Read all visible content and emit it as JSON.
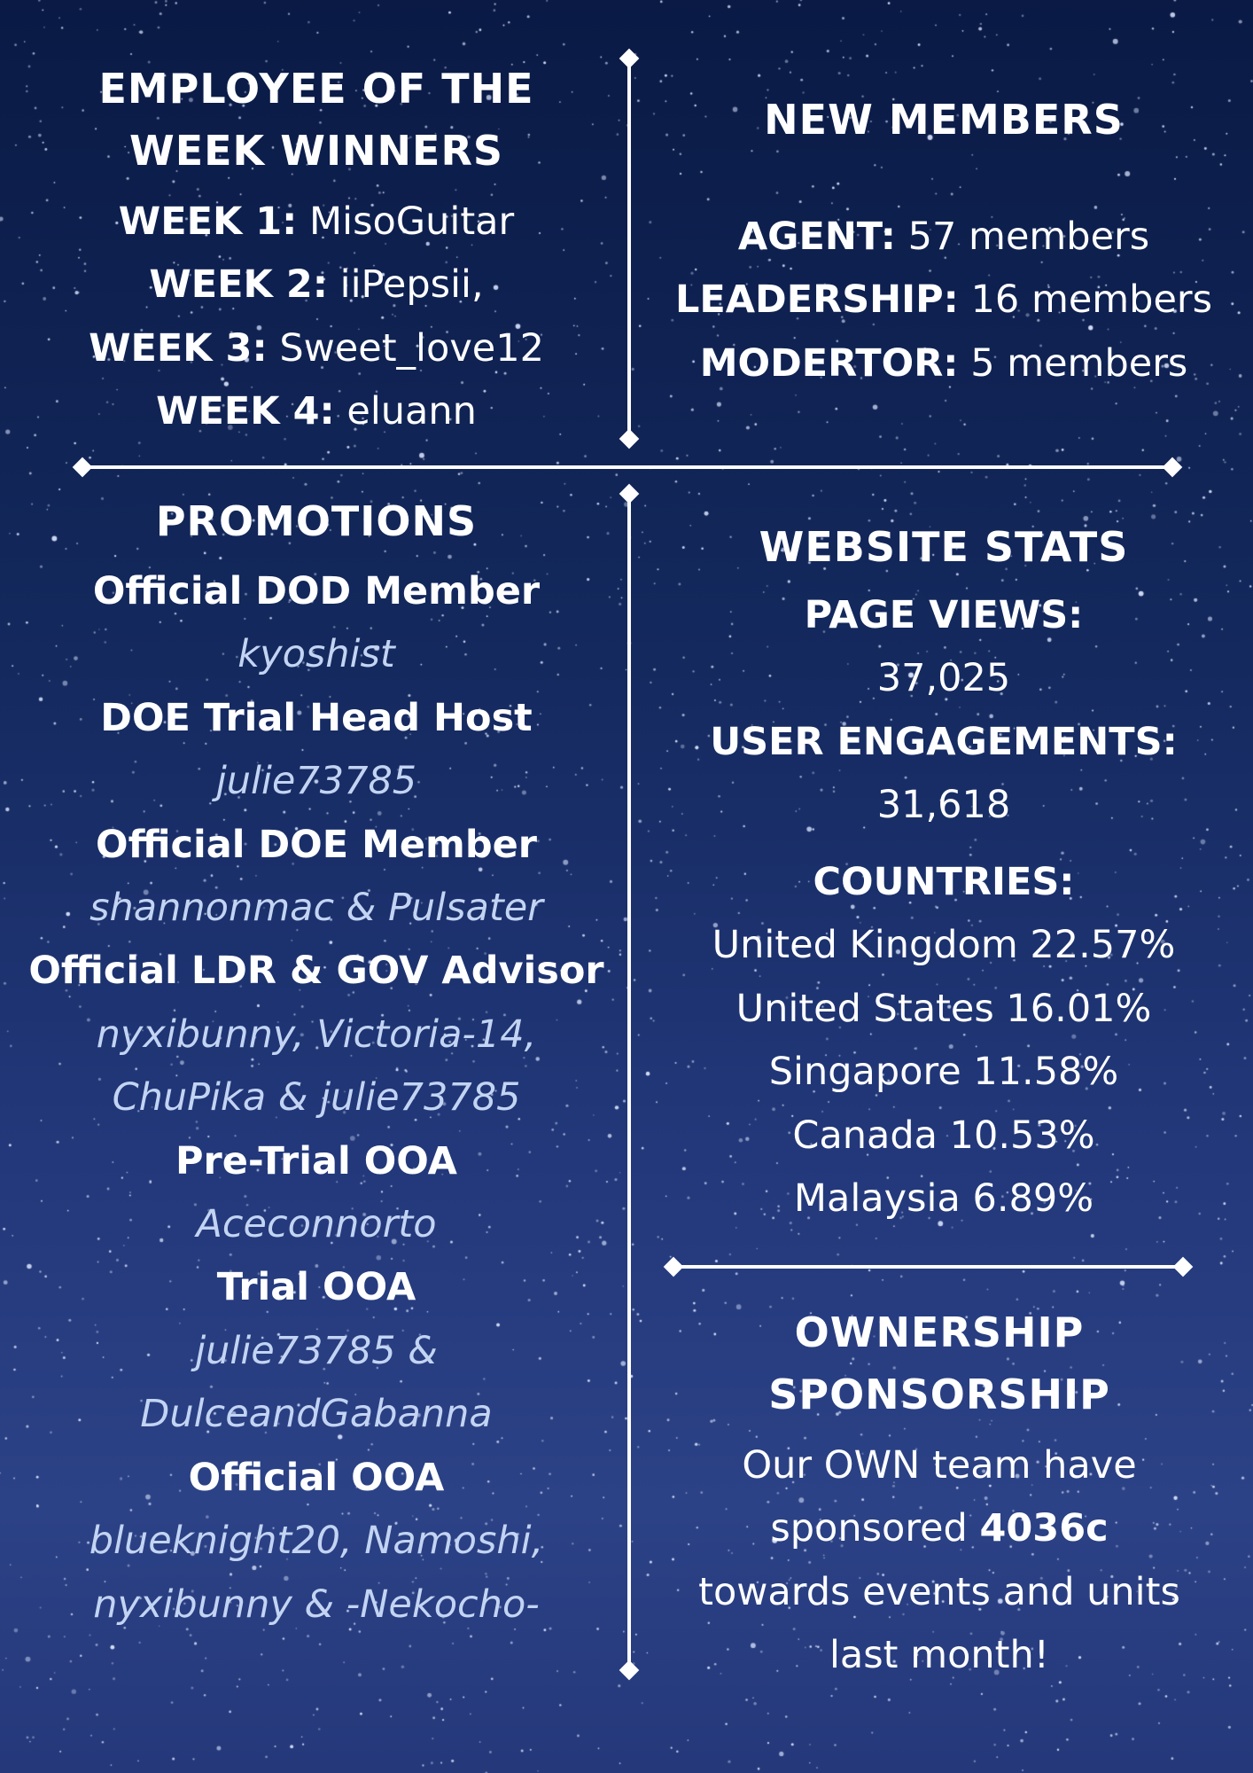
{
  "colors": {
    "background": "#13285c",
    "text": "#ffffff",
    "names": "#c3d4f3"
  },
  "employee_of_week": {
    "title_line1": "EMPLOYEE OF THE",
    "title_line2": "WEEK WINNERS",
    "weeks": [
      {
        "label": "WEEK 1:",
        "name": "MisoGuitar"
      },
      {
        "label": "WEEK 2:",
        "name": "iiPepsii,"
      },
      {
        "label": "WEEK 3:",
        "name": "Sweet_love12"
      },
      {
        "label": "WEEK 4:",
        "name": "eluann"
      }
    ]
  },
  "new_members": {
    "title": "NEW MEMBERS",
    "rows": [
      {
        "label": "AGENT:",
        "value": "57 members"
      },
      {
        "label": "LEADERSHIP:",
        "value": "16 members"
      },
      {
        "label": "MODERTOR:",
        "value": "5 members"
      }
    ]
  },
  "promotions": {
    "title": "PROMOTIONS",
    "items": [
      {
        "role": "Official DOD Member",
        "names": [
          "kyoshist"
        ]
      },
      {
        "role": "DOE Trial Head Host",
        "names": [
          "julie73785"
        ]
      },
      {
        "role": "Official DOE Member",
        "names": [
          "shannonmac & Pulsater"
        ]
      },
      {
        "role": "Official LDR & GOV Advisor",
        "names": [
          "nyxibunny, Victoria-14,",
          "ChuPika & julie73785"
        ]
      },
      {
        "role": "Pre-Trial OOA",
        "names": [
          "Aceconnorto"
        ]
      },
      {
        "role": "Trial OOA",
        "names": [
          "julie73785 &",
          "DulceandGabanna"
        ]
      },
      {
        "role": "Official OOA",
        "names": [
          "blueknight20, Namoshi,",
          "nyxibunny & -Nekocho-"
        ]
      }
    ]
  },
  "website_stats": {
    "title": "WEBSITE STATS",
    "page_views_label": "PAGE VIEWS:",
    "page_views": "37,025",
    "engagements_label": "USER ENGAGEMENTS:",
    "engagements": "31,618",
    "countries_label": "COUNTRIES:",
    "countries": [
      "United Kingdom 22.57%",
      "United States 16.01%",
      "Singapore 11.58%",
      "Canada 10.53%",
      "Malaysia 6.89%"
    ]
  },
  "ownership": {
    "title_line1": "OWNERSHIP",
    "title_line2": "SPONSORSHIP",
    "line1": "Our OWN team have",
    "line2_prefix": "sponsored ",
    "line2_bold": "4036c",
    "line3": "towards events and units",
    "line4": "last month!"
  }
}
